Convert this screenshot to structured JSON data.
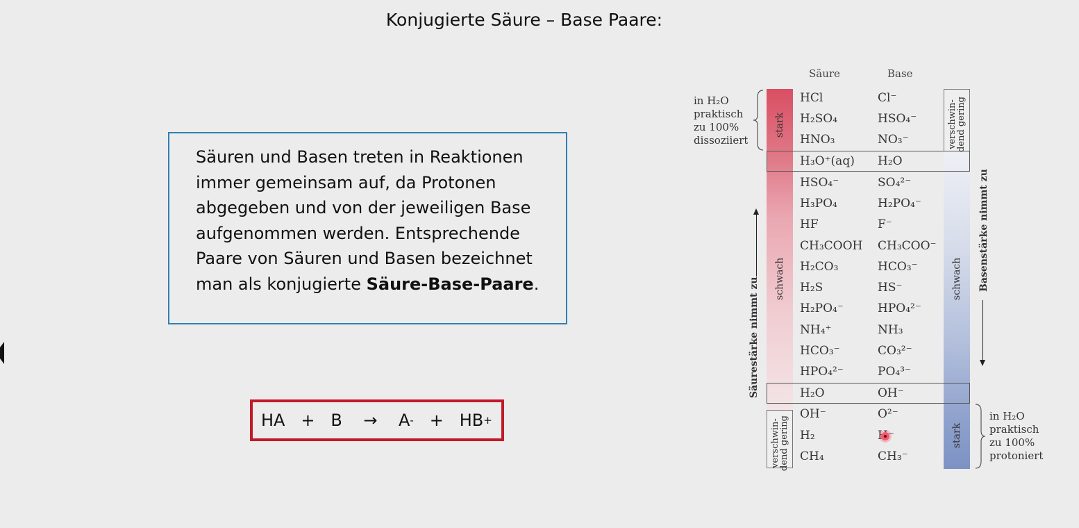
{
  "title": "Konjugierte Säure – Base Paare:",
  "info_box": {
    "lines": [
      "Säuren und Basen treten in Reaktionen",
      "immer gemeinsam auf, da Protonen",
      "abgegeben und von der jeweiligen Base",
      "aufgenommen werden. Entsprechende",
      "Paare von Säuren und Basen bezeichnet"
    ],
    "last_line_prefix": "man als konjugierte ",
    "last_line_bold": "Säure-Base-Paare",
    "last_line_suffix": "."
  },
  "equation": {
    "ha": "HA",
    "plus1": "+",
    "b": "B",
    "arrow": "→",
    "a": "A",
    "a_charge": "-",
    "plus2": "+",
    "hb": "HB",
    "hb_charge": "+"
  },
  "table": {
    "header_acid": "Säure",
    "header_base": "Base",
    "left_top_note": [
      "in H₂O",
      "praktisch",
      "zu 100%",
      "dissoziiert"
    ],
    "right_bottom_note": [
      "in H₂O",
      "praktisch",
      "zu 100%",
      "protoniert"
    ],
    "label_stark_left": "stark",
    "label_schwach_left": "schwach",
    "label_verschwindend_left": "verschwin-dend gering",
    "label_verschwindend_right": "verschwin-dend gering",
    "label_schwach_right": "schwach",
    "label_stark_right": "stark",
    "acid_strength_label": "Säurestärke nimmt zu",
    "base_strength_label": "Basenstärke nimmt zu",
    "rows": [
      {
        "acid": "HCl",
        "base": "Cl⁻"
      },
      {
        "acid": "H₂SO₄",
        "base": "HSO₄⁻"
      },
      {
        "acid": "HNO₃",
        "base": "NO₃⁻"
      },
      {
        "acid": "H₃O⁺(aq)",
        "base": "H₂O"
      },
      {
        "acid": "HSO₄⁻",
        "base": "SO₄²⁻"
      },
      {
        "acid": "H₃PO₄",
        "base": "H₂PO₄⁻"
      },
      {
        "acid": "HF",
        "base": "F⁻"
      },
      {
        "acid": "CH₃COOH",
        "base": "CH₃COO⁻"
      },
      {
        "acid": "H₂CO₃",
        "base": "HCO₃⁻"
      },
      {
        "acid": "H₂S",
        "base": "HS⁻"
      },
      {
        "acid": "H₂PO₄⁻",
        "base": "HPO₄²⁻"
      },
      {
        "acid": "NH₄⁺",
        "base": "NH₃"
      },
      {
        "acid": "HCO₃⁻",
        "base": "CO₃²⁻"
      },
      {
        "acid": "HPO₄²⁻",
        "base": "PO₄³⁻"
      },
      {
        "acid": "H₂O",
        "base": "OH⁻"
      },
      {
        "acid": "OH⁻",
        "base": "O²⁻"
      },
      {
        "acid": "H₂",
        "base": "H⁻"
      },
      {
        "acid": "CH₄",
        "base": "CH₃⁻"
      }
    ]
  },
  "colors": {
    "info_border": "#2e7fb5",
    "equation_border": "#c21a2a",
    "acid_bar_top": "#d94f63",
    "base_bar_bottom": "#7d92c4"
  }
}
